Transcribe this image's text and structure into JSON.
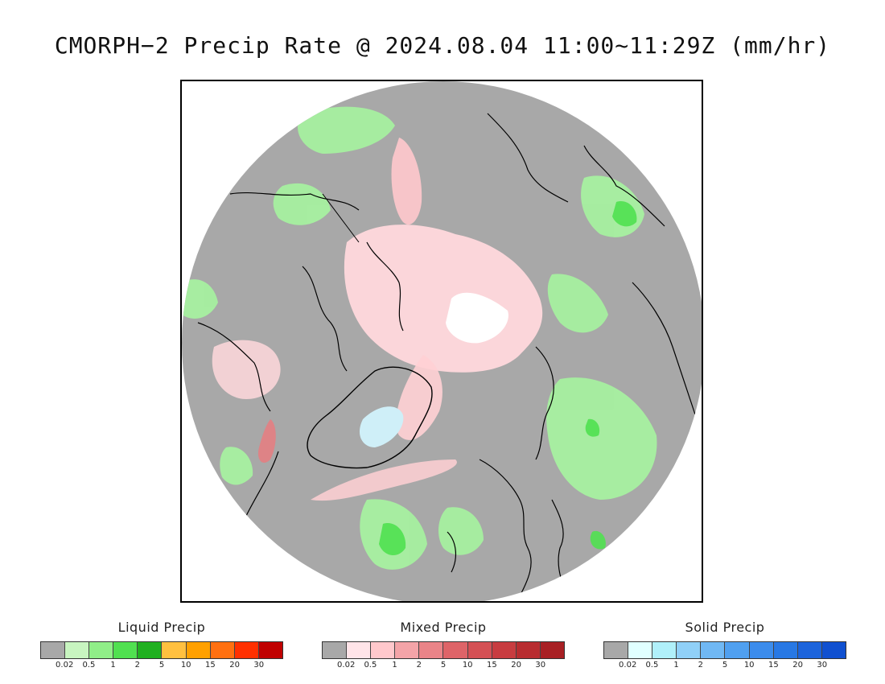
{
  "title": "CMORPH−2 Precip Rate @ 2024.08.04 11:00~11:29Z (mm/hr)",
  "map": {
    "projection": "north polar stereographic",
    "background_color": "#a8a8a8",
    "coastline_color": "#000000"
  },
  "legends": [
    {
      "id": "liquid",
      "title": "Liquid Precip",
      "colors": [
        "#a8a8a8",
        "#c8f5c0",
        "#90ee88",
        "#50e050",
        "#20b020",
        "#ffc040",
        "#ffa000",
        "#ff7010",
        "#ff3000",
        "#c00000"
      ],
      "ticks": [
        "0.02",
        "0.5",
        "1",
        "2",
        "5",
        "10",
        "15",
        "20",
        "30"
      ]
    },
    {
      "id": "mixed",
      "title": "Mixed Precip",
      "colors": [
        "#a8a8a8",
        "#ffe4e8",
        "#ffc8cc",
        "#f4a4a8",
        "#ea8488",
        "#de6468",
        "#d45054",
        "#c83c40",
        "#b82c30",
        "#a82024"
      ],
      "ticks": [
        "0.02",
        "0.5",
        "1",
        "2",
        "5",
        "10",
        "15",
        "20",
        "30"
      ]
    },
    {
      "id": "solid",
      "title": "Solid Precip",
      "colors": [
        "#a8a8a8",
        "#e0ffff",
        "#b0f0fa",
        "#90d0f8",
        "#70b8f4",
        "#50a0f0",
        "#3c8cec",
        "#2878e4",
        "#1c64dc",
        "#1050d0"
      ],
      "ticks": [
        "0.02",
        "0.5",
        "1",
        "2",
        "5",
        "10",
        "15",
        "20",
        "30"
      ]
    }
  ]
}
